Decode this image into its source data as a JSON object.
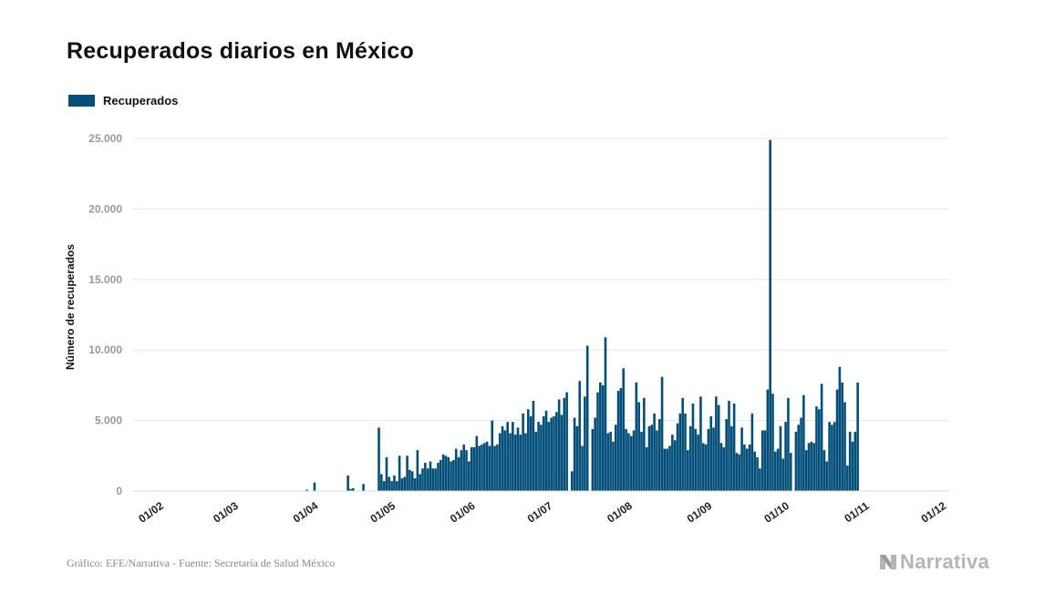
{
  "chart_data": {
    "type": "bar",
    "title": "Recuperados diarios en México",
    "ylabel": "Número de recuperados",
    "xlabel": "",
    "ylim": [
      0,
      25000
    ],
    "yticks": [
      0,
      5000,
      10000,
      15000,
      20000,
      25000
    ],
    "ytick_labels": [
      "0",
      "5.000",
      "10.000",
      "15.000",
      "20.000",
      "25.000"
    ],
    "x_start": "2020-01-22",
    "x_end": "2020-12-04",
    "xticks": [
      {
        "date": "2020-02-01",
        "label": "01/02"
      },
      {
        "date": "2020-03-01",
        "label": "01/03"
      },
      {
        "date": "2020-04-01",
        "label": "01/04"
      },
      {
        "date": "2020-05-01",
        "label": "01/05"
      },
      {
        "date": "2020-06-01",
        "label": "01/06"
      },
      {
        "date": "2020-07-01",
        "label": "01/07"
      },
      {
        "date": "2020-08-01",
        "label": "01/08"
      },
      {
        "date": "2020-09-01",
        "label": "01/09"
      },
      {
        "date": "2020-10-01",
        "label": "01/10"
      },
      {
        "date": "2020-11-01",
        "label": "01/11"
      },
      {
        "date": "2020-12-01",
        "label": "01/12"
      }
    ],
    "grid": true,
    "legend": "top-left",
    "series": [
      {
        "name": "Recuperados",
        "color": "#034f7a",
        "points": [
          [
            "2020-03-29",
            100
          ],
          [
            "2020-04-01",
            600
          ],
          [
            "2020-04-14",
            1100
          ],
          [
            "2020-04-15",
            150
          ],
          [
            "2020-04-16",
            200
          ],
          [
            "2020-04-20",
            500
          ],
          [
            "2020-04-26",
            4500
          ],
          [
            "2020-04-27",
            1200
          ],
          [
            "2020-04-28",
            700
          ],
          [
            "2020-04-29",
            2400
          ],
          [
            "2020-04-30",
            1000
          ],
          [
            "2020-05-01",
            700
          ],
          [
            "2020-05-02",
            1100
          ],
          [
            "2020-05-03",
            700
          ],
          [
            "2020-05-04",
            2500
          ],
          [
            "2020-05-05",
            900
          ],
          [
            "2020-05-06",
            1000
          ],
          [
            "2020-05-07",
            2500
          ],
          [
            "2020-05-08",
            1500
          ],
          [
            "2020-05-09",
            1400
          ],
          [
            "2020-05-10",
            900
          ],
          [
            "2020-05-11",
            2900
          ],
          [
            "2020-05-12",
            1200
          ],
          [
            "2020-05-13",
            1600
          ],
          [
            "2020-05-14",
            2000
          ],
          [
            "2020-05-15",
            1600
          ],
          [
            "2020-05-16",
            2100
          ],
          [
            "2020-05-17",
            1600
          ],
          [
            "2020-05-18",
            1600
          ],
          [
            "2020-05-19",
            2000
          ],
          [
            "2020-05-20",
            2200
          ],
          [
            "2020-05-21",
            2600
          ],
          [
            "2020-05-22",
            2500
          ],
          [
            "2020-05-23",
            2400
          ],
          [
            "2020-05-24",
            2100
          ],
          [
            "2020-05-25",
            2200
          ],
          [
            "2020-05-26",
            3000
          ],
          [
            "2020-05-27",
            2400
          ],
          [
            "2020-05-28",
            2900
          ],
          [
            "2020-05-29",
            3300
          ],
          [
            "2020-05-30",
            2900
          ],
          [
            "2020-05-31",
            2100
          ],
          [
            "2020-06-01",
            3100
          ],
          [
            "2020-06-02",
            3100
          ],
          [
            "2020-06-03",
            3900
          ],
          [
            "2020-06-04",
            3200
          ],
          [
            "2020-06-05",
            3300
          ],
          [
            "2020-06-06",
            3400
          ],
          [
            "2020-06-07",
            3500
          ],
          [
            "2020-06-08",
            3200
          ],
          [
            "2020-06-09",
            5000
          ],
          [
            "2020-06-10",
            3200
          ],
          [
            "2020-06-11",
            3300
          ],
          [
            "2020-06-12",
            4100
          ],
          [
            "2020-06-13",
            4600
          ],
          [
            "2020-06-14",
            4300
          ],
          [
            "2020-06-15",
            4900
          ],
          [
            "2020-06-16",
            4100
          ],
          [
            "2020-06-17",
            4900
          ],
          [
            "2020-06-18",
            4000
          ],
          [
            "2020-06-19",
            4500
          ],
          [
            "2020-06-20",
            4000
          ],
          [
            "2020-06-21",
            5500
          ],
          [
            "2020-06-22",
            4100
          ],
          [
            "2020-06-23",
            5800
          ],
          [
            "2020-06-24",
            5300
          ],
          [
            "2020-06-25",
            6400
          ],
          [
            "2020-06-26",
            4200
          ],
          [
            "2020-06-27",
            4900
          ],
          [
            "2020-06-28",
            4700
          ],
          [
            "2020-06-29",
            5300
          ],
          [
            "2020-06-30",
            5700
          ],
          [
            "2020-07-01",
            4900
          ],
          [
            "2020-07-02",
            5200
          ],
          [
            "2020-07-03",
            5300
          ],
          [
            "2020-07-04",
            5600
          ],
          [
            "2020-07-05",
            6500
          ],
          [
            "2020-07-06",
            5400
          ],
          [
            "2020-07-07",
            6600
          ],
          [
            "2020-07-08",
            7000
          ],
          [
            "2020-07-10",
            1400
          ],
          [
            "2020-07-11",
            5200
          ],
          [
            "2020-07-12",
            4600
          ],
          [
            "2020-07-13",
            7800
          ],
          [
            "2020-07-14",
            3200
          ],
          [
            "2020-07-15",
            6700
          ],
          [
            "2020-07-16",
            10300
          ],
          [
            "2020-07-18",
            4400
          ],
          [
            "2020-07-19",
            5200
          ],
          [
            "2020-07-20",
            7000
          ],
          [
            "2020-07-21",
            7700
          ],
          [
            "2020-07-22",
            7500
          ],
          [
            "2020-07-23",
            10900
          ],
          [
            "2020-07-24",
            4100
          ],
          [
            "2020-07-25",
            4200
          ],
          [
            "2020-07-26",
            3500
          ],
          [
            "2020-07-27",
            4700
          ],
          [
            "2020-07-28",
            7100
          ],
          [
            "2020-07-29",
            7300
          ],
          [
            "2020-07-30",
            8700
          ],
          [
            "2020-07-31",
            4400
          ],
          [
            "2020-08-01",
            4100
          ],
          [
            "2020-08-02",
            3900
          ],
          [
            "2020-08-03",
            4300
          ],
          [
            "2020-08-04",
            7700
          ],
          [
            "2020-08-05",
            6300
          ],
          [
            "2020-08-06",
            4200
          ],
          [
            "2020-08-07",
            6600
          ],
          [
            "2020-08-08",
            3100
          ],
          [
            "2020-08-09",
            4600
          ],
          [
            "2020-08-10",
            4700
          ],
          [
            "2020-08-11",
            5500
          ],
          [
            "2020-08-12",
            4300
          ],
          [
            "2020-08-13",
            5100
          ],
          [
            "2020-08-14",
            8100
          ],
          [
            "2020-08-15",
            3000
          ],
          [
            "2020-08-16",
            3000
          ],
          [
            "2020-08-17",
            3200
          ],
          [
            "2020-08-18",
            4000
          ],
          [
            "2020-08-19",
            3600
          ],
          [
            "2020-08-20",
            4800
          ],
          [
            "2020-08-21",
            5500
          ],
          [
            "2020-08-22",
            6600
          ],
          [
            "2020-08-23",
            5500
          ],
          [
            "2020-08-24",
            2900
          ],
          [
            "2020-08-25",
            4600
          ],
          [
            "2020-08-26",
            6200
          ],
          [
            "2020-08-27",
            4400
          ],
          [
            "2020-08-28",
            4000
          ],
          [
            "2020-08-29",
            6700
          ],
          [
            "2020-08-30",
            3400
          ],
          [
            "2020-08-31",
            3300
          ],
          [
            "2020-09-01",
            4400
          ],
          [
            "2020-09-02",
            5300
          ],
          [
            "2020-09-03",
            4500
          ],
          [
            "2020-09-04",
            6700
          ],
          [
            "2020-09-05",
            6100
          ],
          [
            "2020-09-06",
            3400
          ],
          [
            "2020-09-07",
            3100
          ],
          [
            "2020-09-08",
            5100
          ],
          [
            "2020-09-09",
            6400
          ],
          [
            "2020-09-10",
            4600
          ],
          [
            "2020-09-11",
            6200
          ],
          [
            "2020-09-12",
            2700
          ],
          [
            "2020-09-13",
            2600
          ],
          [
            "2020-09-14",
            4500
          ],
          [
            "2020-09-15",
            3300
          ],
          [
            "2020-09-16",
            3000
          ],
          [
            "2020-09-17",
            3300
          ],
          [
            "2020-09-18",
            5500
          ],
          [
            "2020-09-19",
            2800
          ],
          [
            "2020-09-20",
            2400
          ],
          [
            "2020-09-21",
            1600
          ],
          [
            "2020-09-22",
            4300
          ],
          [
            "2020-09-23",
            4300
          ],
          [
            "2020-09-24",
            7200
          ],
          [
            "2020-09-25",
            24900
          ],
          [
            "2020-09-26",
            6900
          ],
          [
            "2020-09-27",
            2800
          ],
          [
            "2020-09-28",
            3000
          ],
          [
            "2020-09-29",
            4600
          ],
          [
            "2020-09-30",
            2300
          ],
          [
            "2020-10-01",
            4900
          ],
          [
            "2020-10-02",
            6600
          ],
          [
            "2020-10-03",
            2700
          ],
          [
            "2020-10-05",
            4200
          ],
          [
            "2020-10-06",
            4700
          ],
          [
            "2020-10-07",
            5200
          ],
          [
            "2020-10-08",
            6800
          ],
          [
            "2020-10-09",
            2900
          ],
          [
            "2020-10-10",
            3400
          ],
          [
            "2020-10-11",
            3500
          ],
          [
            "2020-10-12",
            3400
          ],
          [
            "2020-10-13",
            6000
          ],
          [
            "2020-10-14",
            5800
          ],
          [
            "2020-10-15",
            7600
          ],
          [
            "2020-10-16",
            2900
          ],
          [
            "2020-10-17",
            2100
          ],
          [
            "2020-10-18",
            4900
          ],
          [
            "2020-10-19",
            4700
          ],
          [
            "2020-10-20",
            4900
          ],
          [
            "2020-10-21",
            7200
          ],
          [
            "2020-10-22",
            8800
          ],
          [
            "2020-10-23",
            7700
          ],
          [
            "2020-10-24",
            6300
          ],
          [
            "2020-10-25",
            1800
          ],
          [
            "2020-10-26",
            4200
          ],
          [
            "2020-10-27",
            3500
          ],
          [
            "2020-10-28",
            4200
          ],
          [
            "2020-10-29",
            7700
          ]
        ]
      }
    ]
  },
  "source": "Gráfico: EFE/Narrativa - Fuente: Secretaría de Salud México",
  "brand": {
    "name": "Narrativa"
  }
}
